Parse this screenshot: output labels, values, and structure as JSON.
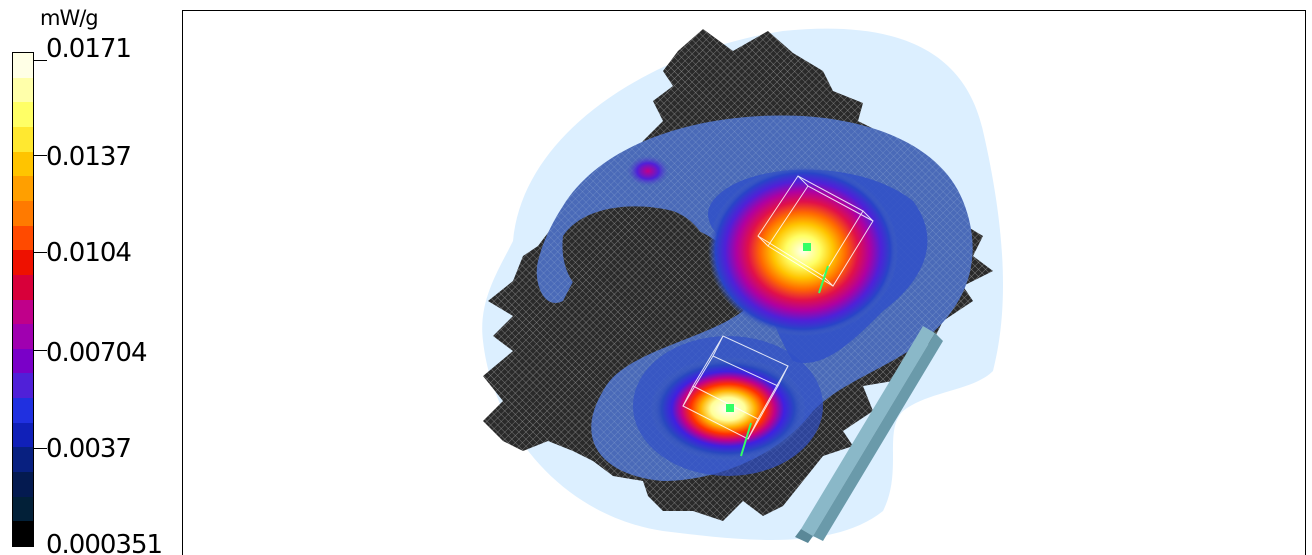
{
  "legend": {
    "unit": "mW/g",
    "ticks": [
      "0.0171",
      "0.0137",
      "0.0104",
      "0.00704",
      "0.0037",
      "0.000351"
    ],
    "colorbar_colors": [
      "#ffffe6",
      "#ffffaa",
      "#ffff66",
      "#ffe830",
      "#ffc400",
      "#ff9f00",
      "#ff7a00",
      "#ff4a00",
      "#ee1100",
      "#d8003a",
      "#c0008a",
      "#a000b0",
      "#7a00c8",
      "#5020d8",
      "#2030e0",
      "#1020b8",
      "#082080",
      "#041a50",
      "#022038",
      "#000000"
    ]
  },
  "scene": {
    "phantom_color": "#dcefff",
    "grid_color": "#3a3a3a",
    "block_color": "#8ab8c8",
    "marker_color": "#33ff66"
  }
}
